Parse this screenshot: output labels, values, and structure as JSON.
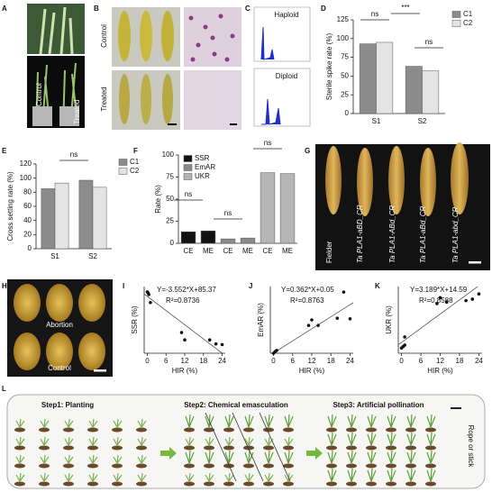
{
  "panel_labels": [
    "A",
    "B",
    "C",
    "D",
    "E",
    "F",
    "G",
    "H",
    "I",
    "J",
    "K",
    "L"
  ],
  "panel_a": {
    "labels": [
      "Control",
      "Treated"
    ]
  },
  "panel_b": {
    "rows": [
      "Control",
      "Treated"
    ]
  },
  "panel_c": {
    "labels": [
      "Haploid",
      "Diploid"
    ]
  },
  "panel_g": {
    "labels": [
      "Fielder",
      "Ta PLA1-aBD_CR",
      "Ta PLA1-ABd_CR",
      "Ta PLA1-aBd_CR",
      "Ta PLA1-abd_CR"
    ]
  },
  "panel_h": {
    "labels": [
      "Abortion",
      "Control"
    ]
  },
  "panel_l": {
    "steps": [
      "Step1: Planting",
      "Step2: Chemical emasculation",
      "Step3: Artificial pollination"
    ],
    "note": "Rope or stick"
  },
  "chart_data": [
    {
      "type": "bar",
      "categories": [
        "S1",
        "S2"
      ],
      "series": [
        {
          "name": "C1",
          "color": "#8c8c8c",
          "values": [
            93,
            63
          ]
        },
        {
          "name": "C2",
          "color": "#e4e4e4",
          "values": [
            95,
            57
          ]
        }
      ],
      "ylabel": "Sterile spike rate (%)",
      "ylim": [
        0,
        125
      ],
      "yticks": [
        0,
        25,
        50,
        75,
        100,
        125
      ],
      "annotations": [
        "ns",
        "***",
        "ns"
      ]
    },
    {
      "type": "bar",
      "categories": [
        "S1",
        "S2"
      ],
      "series": [
        {
          "name": "C1",
          "color": "#8c8c8c",
          "values": [
            85,
            97
          ]
        },
        {
          "name": "C2",
          "color": "#e4e4e4",
          "values": [
            93,
            87
          ]
        }
      ],
      "ylabel": "Cross setting rate (%)",
      "ylim": [
        0,
        120
      ],
      "yticks": [
        0,
        20,
        40,
        60,
        80,
        100,
        120
      ],
      "annotations": [
        "ns"
      ]
    },
    {
      "type": "bar",
      "categories": [
        "CE",
        "ME",
        "CE",
        "ME",
        "CE",
        "ME"
      ],
      "series": [
        {
          "name": "SSR",
          "color": "#111111",
          "values": [
            13,
            14,
            null,
            null,
            null,
            null
          ]
        },
        {
          "name": "EmAR",
          "color": "#8a8a8a",
          "values": [
            null,
            null,
            5,
            6,
            null,
            null
          ]
        },
        {
          "name": "UKR",
          "color": "#b5b5b5",
          "values": [
            null,
            null,
            null,
            null,
            80,
            79
          ]
        }
      ],
      "ylabel": "Rate (%)",
      "ylim": [
        0,
        100
      ],
      "yticks": [
        0,
        25,
        50,
        75,
        100
      ],
      "annotations": [
        "ns",
        "ns",
        "ns"
      ]
    },
    {
      "type": "scatter",
      "x": [
        0,
        0.3,
        0.5,
        1,
        11,
        12,
        20,
        22,
        24
      ],
      "y": [
        92,
        90,
        88,
        76,
        31,
        20,
        20,
        14,
        13
      ],
      "xlabel": "HIR (%)",
      "ylabel": "SSR (%)",
      "xlim": [
        -1,
        25
      ],
      "xticks": [
        0,
        6,
        12,
        18,
        24
      ],
      "ylim": [
        0,
        100
      ],
      "trendline": {
        "slope": -3.552,
        "intercept": 85.37
      },
      "equation": "Y=-3.552*X+85.37",
      "r2": "R²=0.8736"
    },
    {
      "type": "scatter",
      "x": [
        0,
        0.5,
        1,
        11,
        12,
        14,
        20,
        22,
        24
      ],
      "y": [
        0,
        0.3,
        0.5,
        5,
        6,
        5,
        6.3,
        11,
        6.2
      ],
      "xlabel": "HIR (%)",
      "ylabel": "EmAR (%)",
      "xlim": [
        -1,
        25
      ],
      "xticks": [
        0,
        6,
        12,
        18,
        24
      ],
      "ylim": [
        0,
        12
      ],
      "trendline": {
        "slope": 0.362,
        "intercept": 0.05
      },
      "equation": "Y=0.362*X+0.05",
      "r2": "R²=0.8763"
    },
    {
      "type": "scatter",
      "x": [
        0,
        0.5,
        1,
        1,
        11,
        12,
        14,
        20,
        22,
        24
      ],
      "y": [
        7,
        9,
        11,
        22,
        67,
        75,
        69,
        71,
        73,
        80
      ],
      "xlabel": "HIR (%)",
      "ylabel": "UKR (%)",
      "xlim": [
        -1,
        25
      ],
      "xticks": [
        0,
        6,
        12,
        18,
        24
      ],
      "ylim": [
        0,
        90
      ],
      "trendline": {
        "slope": 3.189,
        "intercept": 14.59
      },
      "equation": "Y=3.189*X+14.59",
      "r2": "R²=0.8588"
    }
  ]
}
